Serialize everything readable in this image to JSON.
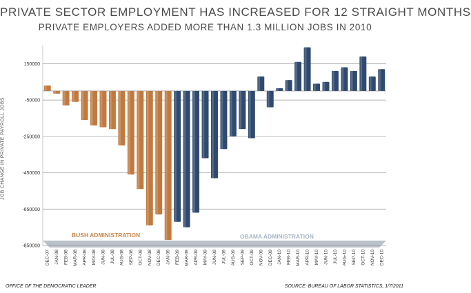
{
  "title": "PRIVATE SECTOR EMPLOYMENT HAS INCREASED FOR 12 STRAIGHT MONTHS",
  "subtitle": "PRIVATE EMPLOYERS ADDED MORE THAN 1.3 MILLION JOBS IN 2010",
  "footer_left": "OFFICE OF THE DEMOCRATIC LEADER",
  "footer_right": "SOURCE: BUREAU OF LABOR STATISTICS, 1/7/2011",
  "colors": {
    "bush": "#c07a40",
    "obama": "#2f4a6e",
    "bush_label": "#c8874e",
    "obama_label": "#a9b6c6",
    "grid": "#9a9a9a"
  },
  "chart_data": {
    "type": "bar",
    "ylabel": "JOB CHANGE IN PRIVATE PAYROLL JOBS",
    "xlabel": "",
    "ylim": [
      -850000,
      250000
    ],
    "yticks": [
      150000,
      -50000,
      -250000,
      -450000,
      -650000,
      -850000
    ],
    "ytick_labels": [
      "150000",
      "-50000",
      "-250000",
      "-450000",
      "-650000",
      "-850000"
    ],
    "grid": true,
    "annotations": [
      "BUSH ADMINISTRATION",
      "OBAMA ADMINISTRATION"
    ],
    "categories": [
      "DEC-07",
      "JAN-08",
      "FEB-08",
      "MAR-08",
      "APR-08",
      "MAY-08",
      "JUN-08",
      "JUL-08",
      "AUG-08",
      "SEP-08",
      "OCT-08",
      "NOV-08",
      "DEC-08",
      "JAN-09",
      "FEB-09",
      "MAR-09",
      "APR-09",
      "MAY-09",
      "JUN-09",
      "JUL-09",
      "AUG-09",
      "SEP-09",
      "OCT-09",
      "NOV-09",
      "DEC-09",
      "JAN-10",
      "FEB-10",
      "MAR-10",
      "APR-10",
      "MAY-10",
      "JUN-10",
      "JUL-10",
      "AUG-10",
      "SEP-10",
      "OCT-10",
      "NOV-10",
      "DEC-10"
    ],
    "series": [
      {
        "name": "BUSH ADMINISTRATION",
        "values": [
          30000,
          -15000,
          -80000,
          -60000,
          -160000,
          -190000,
          -200000,
          -210000,
          -300000,
          -460000,
          -540000,
          -740000,
          -680000,
          -820000,
          null,
          null,
          null,
          null,
          null,
          null,
          null,
          null,
          null,
          null,
          null,
          null,
          null,
          null,
          null,
          null,
          null,
          null,
          null,
          null,
          null,
          null,
          null
        ]
      },
      {
        "name": "OBAMA ADMINISTRATION",
        "values": [
          null,
          null,
          null,
          null,
          null,
          null,
          null,
          null,
          null,
          null,
          null,
          null,
          null,
          null,
          -720000,
          -750000,
          -670000,
          -370000,
          -480000,
          -320000,
          -250000,
          -210000,
          -260000,
          80000,
          -90000,
          15000,
          60000,
          160000,
          240000,
          40000,
          50000,
          110000,
          130000,
          110000,
          190000,
          80000,
          120000
        ]
      }
    ]
  }
}
